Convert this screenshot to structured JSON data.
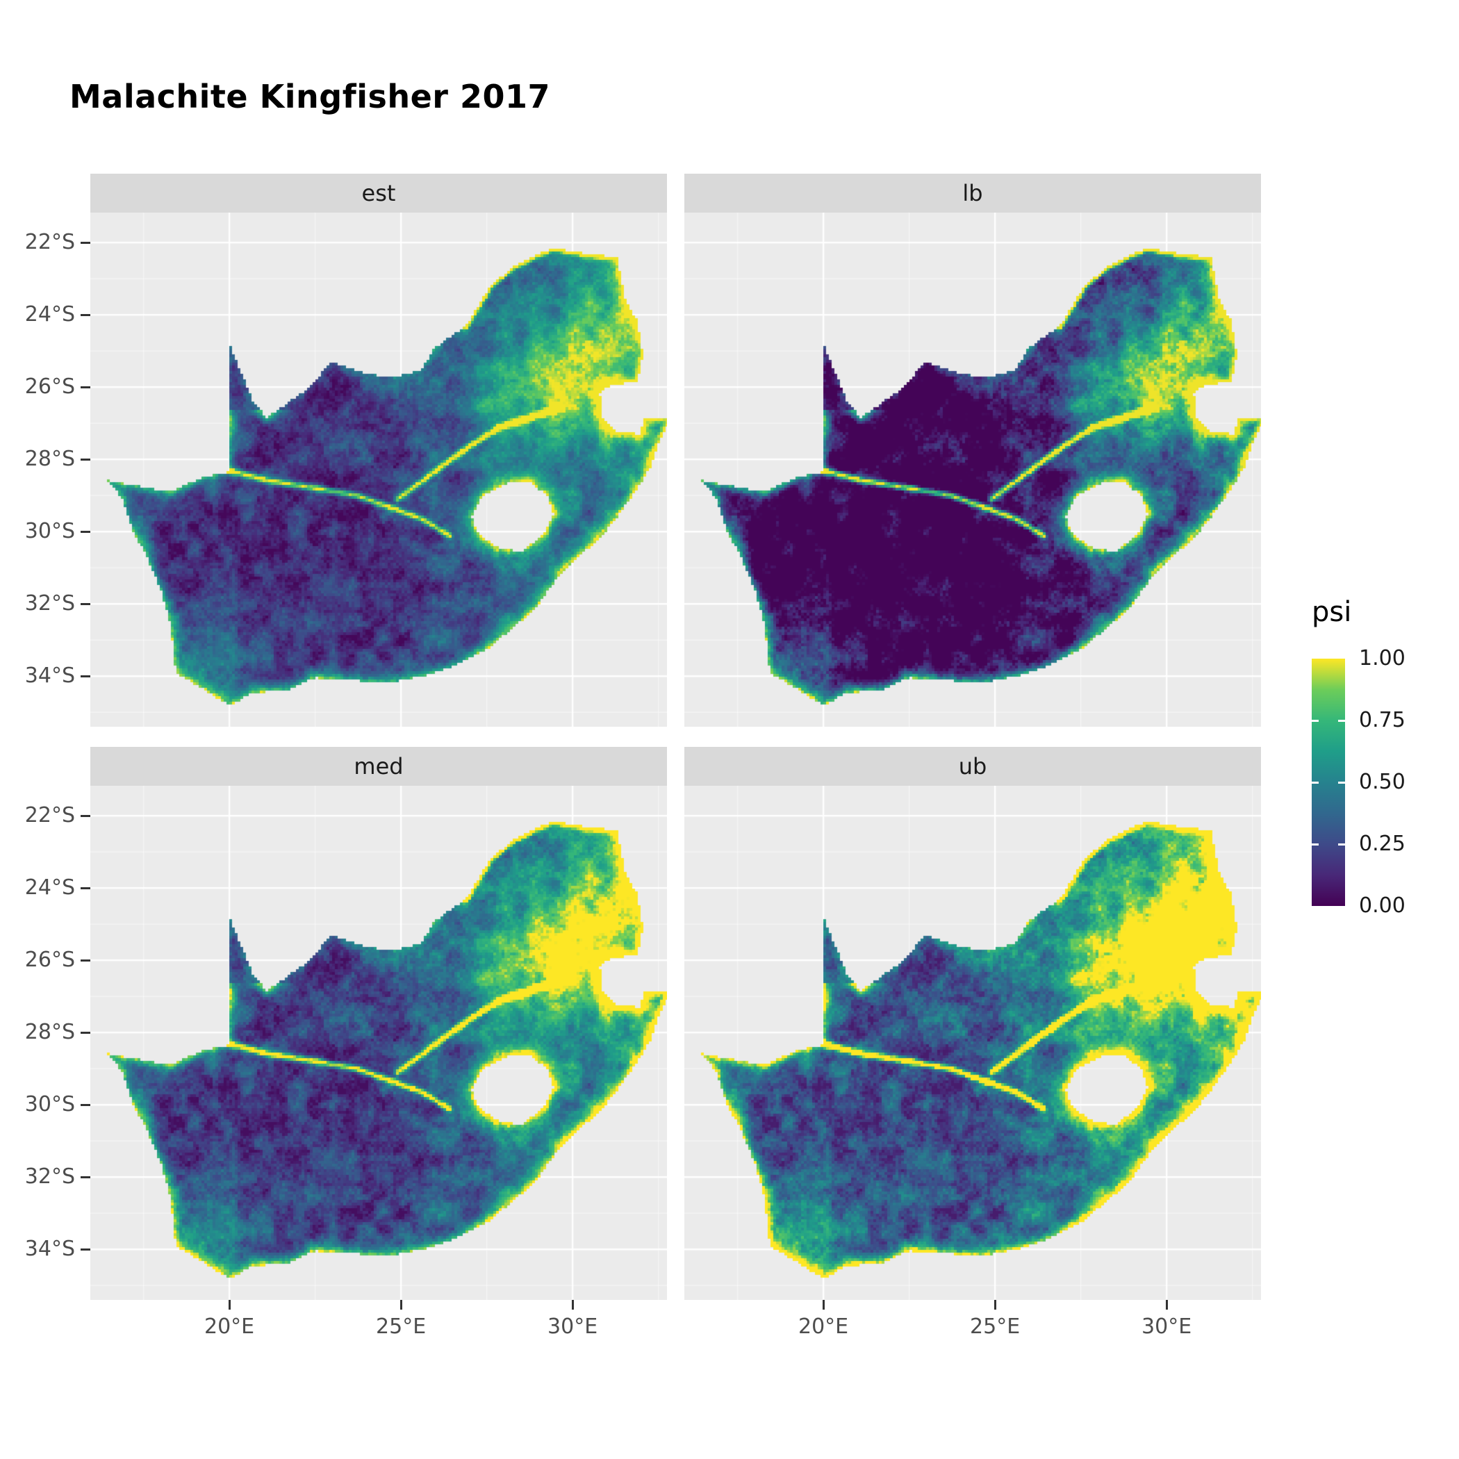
{
  "title": "Malachite Kingfisher 2017",
  "facets": [
    {
      "id": "est",
      "label": "est"
    },
    {
      "id": "lb",
      "label": "lb"
    },
    {
      "id": "med",
      "label": "med"
    },
    {
      "id": "ub",
      "label": "ub"
    }
  ],
  "axes": {
    "x_ticks": [
      {
        "label": "20°E",
        "lon": 20
      },
      {
        "label": "25°E",
        "lon": 25
      },
      {
        "label": "30°E",
        "lon": 30
      }
    ],
    "y_ticks": [
      {
        "label": "22°S",
        "lat": -22
      },
      {
        "label": "24°S",
        "lat": -24
      },
      {
        "label": "26°S",
        "lat": -26
      },
      {
        "label": "28°S",
        "lat": -28
      },
      {
        "label": "30°S",
        "lat": -30
      },
      {
        "label": "32°S",
        "lat": -32
      },
      {
        "label": "34°S",
        "lat": -34
      }
    ]
  },
  "legend": {
    "title": "psi",
    "ticks": [
      {
        "label": "1.00",
        "value": 1.0
      },
      {
        "label": "0.75",
        "value": 0.75
      },
      {
        "label": "0.50",
        "value": 0.5
      },
      {
        "label": "0.25",
        "value": 0.25
      },
      {
        "label": "0.00",
        "value": 0.0
      }
    ]
  },
  "colors": {
    "page_bg": "#FFFFFF",
    "panel_bg": "#EBEBEB",
    "strip_bg": "#D9D9D9",
    "strip_text": "#1A1A1A",
    "grid": "#FFFFFF",
    "axis_text": "#4D4D4D",
    "tick_mark": "#333333",
    "title_text": "#000000"
  },
  "chart_data": {
    "type": "heatmap",
    "title": "Malachite Kingfisher 2017",
    "variable": "psi",
    "facet_labels": [
      "est",
      "lb",
      "med",
      "ub"
    ],
    "color_scale": {
      "name": "viridis",
      "limits": [
        0,
        1
      ],
      "breaks": [
        0,
        0.25,
        0.5,
        0.75,
        1
      ],
      "stops": [
        {
          "t": 0.0,
          "hex": "#440154"
        },
        {
          "t": 0.125,
          "hex": "#482878"
        },
        {
          "t": 0.25,
          "hex": "#3E4A89"
        },
        {
          "t": 0.375,
          "hex": "#31688E"
        },
        {
          "t": 0.5,
          "hex": "#26828E"
        },
        {
          "t": 0.625,
          "hex": "#1F9E89"
        },
        {
          "t": 0.75,
          "hex": "#35B779"
        },
        {
          "t": 0.875,
          "hex": "#6DCD59"
        },
        {
          "t": 1.0,
          "hex": "#FDE725"
        }
      ]
    },
    "x_axis": {
      "ticks": [
        20,
        25,
        30
      ],
      "labels": [
        "20°E",
        "25°E",
        "30°E"
      ],
      "range": [
        15.95,
        32.75
      ],
      "minor": [
        17.5,
        22.5,
        27.5,
        32.5
      ]
    },
    "y_axis": {
      "ticks": [
        -22,
        -24,
        -26,
        -28,
        -30,
        -32,
        -34
      ],
      "labels": [
        "22°S",
        "24°S",
        "26°S",
        "28°S",
        "30°S",
        "32°S",
        "34°S"
      ],
      "range": [
        -35.4,
        -21.17
      ],
      "minor": [
        -23,
        -25,
        -27,
        -29,
        -31,
        -33,
        -35
      ]
    },
    "region_outline": [
      [
        16.45,
        -28.58
      ],
      [
        16.9,
        -29.1
      ],
      [
        17.15,
        -29.9
      ],
      [
        17.6,
        -30.7
      ],
      [
        18.0,
        -31.6
      ],
      [
        18.25,
        -32.4
      ],
      [
        18.35,
        -33.1
      ],
      [
        18.45,
        -33.95
      ],
      [
        18.8,
        -34.1
      ],
      [
        19.4,
        -34.45
      ],
      [
        20.0,
        -34.82
      ],
      [
        20.7,
        -34.45
      ],
      [
        21.6,
        -34.42
      ],
      [
        22.5,
        -34.05
      ],
      [
        23.5,
        -34.1
      ],
      [
        24.6,
        -34.2
      ],
      [
        25.65,
        -34.0
      ],
      [
        26.5,
        -33.75
      ],
      [
        27.45,
        -33.3
      ],
      [
        28.1,
        -32.8
      ],
      [
        28.9,
        -32.15
      ],
      [
        29.7,
        -31.1
      ],
      [
        30.6,
        -30.35
      ],
      [
        31.1,
        -29.85
      ],
      [
        31.75,
        -29.0
      ],
      [
        32.25,
        -28.25
      ],
      [
        32.5,
        -27.6
      ],
      [
        32.85,
        -26.85
      ],
      [
        32.1,
        -26.85
      ],
      [
        31.95,
        -27.3
      ],
      [
        31.2,
        -27.2
      ],
      [
        30.85,
        -26.8
      ],
      [
        30.8,
        -26.15
      ],
      [
        31.1,
        -25.95
      ],
      [
        31.9,
        -25.85
      ],
      [
        32.05,
        -25.1
      ],
      [
        31.9,
        -24.2
      ],
      [
        31.55,
        -23.6
      ],
      [
        31.3,
        -22.4
      ],
      [
        30.4,
        -22.3
      ],
      [
        29.4,
        -22.15
      ],
      [
        28.3,
        -22.65
      ],
      [
        27.6,
        -23.2
      ],
      [
        26.9,
        -24.3
      ],
      [
        26.0,
        -24.9
      ],
      [
        25.6,
        -25.5
      ],
      [
        24.8,
        -25.75
      ],
      [
        23.9,
        -25.6
      ],
      [
        23.0,
        -25.3
      ],
      [
        22.2,
        -26.1
      ],
      [
        21.1,
        -26.85
      ],
      [
        20.7,
        -26.4
      ],
      [
        20.35,
        -25.6
      ],
      [
        20.0,
        -24.78
      ],
      [
        20.0,
        -28.35
      ],
      [
        19.2,
        -28.5
      ],
      [
        18.3,
        -28.9
      ],
      [
        17.4,
        -28.75
      ]
    ],
    "inner_hole": [
      [
        27.05,
        -29.6
      ],
      [
        27.4,
        -29.0
      ],
      [
        28.1,
        -28.65
      ],
      [
        28.7,
        -28.6
      ],
      [
        29.25,
        -29.0
      ],
      [
        29.45,
        -29.55
      ],
      [
        29.15,
        -30.1
      ],
      [
        28.5,
        -30.55
      ],
      [
        27.85,
        -30.45
      ],
      [
        27.3,
        -30.1
      ]
    ],
    "river_lines": [
      [
        [
          19.95,
          -28.3
        ],
        [
          21.2,
          -28.6
        ],
        [
          22.5,
          -28.8
        ],
        [
          23.7,
          -29.0
        ],
        [
          24.6,
          -29.3
        ],
        [
          25.6,
          -29.65
        ],
        [
          26.4,
          -30.1
        ]
      ],
      [
        [
          24.9,
          -29.1
        ],
        [
          25.9,
          -28.4
        ],
        [
          26.9,
          -27.7
        ],
        [
          27.9,
          -27.1
        ],
        [
          28.9,
          -26.8
        ],
        [
          29.6,
          -26.55
        ]
      ],
      [
        [
          26.9,
          -24.3
        ],
        [
          27.6,
          -23.2
        ],
        [
          28.3,
          -22.65
        ],
        [
          29.4,
          -22.15
        ],
        [
          30.4,
          -22.3
        ],
        [
          31.3,
          -22.4
        ]
      ]
    ],
    "facet_value_adjust": {
      "est": {
        "mul": 1.0,
        "add": 0.0
      },
      "lb": {
        "mul": 1.3,
        "add": -0.3
      },
      "med": {
        "mul": 1.12,
        "add": 0.02
      },
      "ub": {
        "mul": 1.3,
        "add": 0.06
      }
    }
  }
}
